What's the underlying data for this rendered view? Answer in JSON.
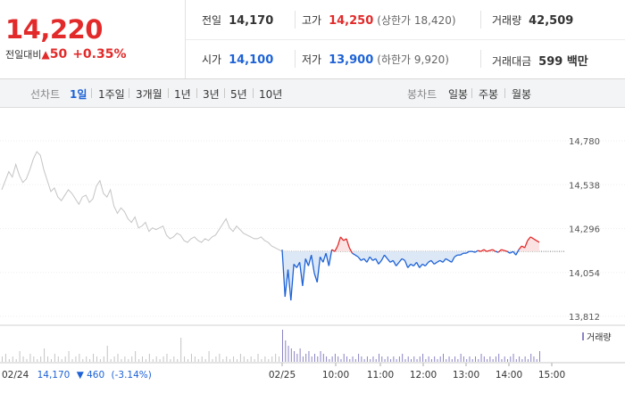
{
  "quote": {
    "price": "14,220",
    "change_label": "전일대비",
    "change_icon": "up-triangle-icon",
    "change_glyph": "▲",
    "change_value": "50",
    "change_pct": "+0.35%"
  },
  "stats": {
    "prev_close_label": "전일",
    "prev_close": "14,170",
    "high_label": "고가",
    "high": "14,250",
    "upper_limit": "(상한가 18,420)",
    "volume_label": "거래량",
    "volume": "42,509",
    "open_label": "시가",
    "open": "14,100",
    "low_label": "저가",
    "low": "13,900",
    "lower_limit": "(하한가 9,920)",
    "amount_label": "거래대금",
    "amount": "599 백만"
  },
  "tabs": {
    "line_label": "선차트",
    "line": [
      "1일",
      "1주일",
      "3개월",
      "1년",
      "3년",
      "5년",
      "10년"
    ],
    "active_line": "1일",
    "candle_label": "봉차트",
    "candle": [
      "일봉",
      "주봉",
      "월봉"
    ]
  },
  "colors": {
    "up": "#e22a2a",
    "down": "#1d62d6",
    "prev_day": "#c4c4c4",
    "volume": "#8a84c4"
  },
  "chart_data": {
    "type": "line",
    "title": "",
    "ylim": [
      13812,
      14780
    ],
    "yticks": [
      "14,780",
      "14,538",
      "14,296",
      "14,054",
      "13,812"
    ],
    "ytick_values": [
      14780,
      14538,
      14296,
      14054,
      13812
    ],
    "reference_price": 14170,
    "grid": true,
    "x_labels": [
      "02/24",
      "02/25",
      "10:00",
      "11:00",
      "12:00",
      "13:00",
      "14:00",
      "15:00"
    ],
    "volume_legend": "거래량",
    "prev_day_info": {
      "date": "02/24",
      "close": "14,170",
      "arrow": "▼",
      "change": "460",
      "pct": "(-3.14%)"
    },
    "prev_day_series": {
      "name": "02/24",
      "values": [
        14510,
        14560,
        14610,
        14580,
        14650,
        14590,
        14550,
        14570,
        14620,
        14680,
        14720,
        14700,
        14620,
        14560,
        14500,
        14520,
        14470,
        14450,
        14480,
        14510,
        14490,
        14460,
        14430,
        14470,
        14480,
        14440,
        14460,
        14530,
        14560,
        14490,
        14470,
        14510,
        14420,
        14380,
        14410,
        14390,
        14350,
        14330,
        14360,
        14300,
        14310,
        14330,
        14280,
        14300,
        14290,
        14300,
        14310,
        14260,
        14240,
        14250,
        14270,
        14260,
        14230,
        14220,
        14240,
        14250,
        14230,
        14220,
        14240,
        14230,
        14250,
        14260,
        14290,
        14320,
        14350,
        14300,
        14280,
        14310,
        14290,
        14270,
        14260,
        14250,
        14240,
        14240,
        14250,
        14230,
        14220,
        14200,
        14190,
        14180,
        14170
      ]
    },
    "today_series": {
      "name": "02/25",
      "values": [
        14180,
        13920,
        14070,
        13900,
        14100,
        14080,
        14110,
        13980,
        14130,
        14090,
        14150,
        14050,
        14000,
        14140,
        14110,
        14160,
        14090,
        14180,
        14170,
        14200,
        14250,
        14230,
        14240,
        14190,
        14160,
        14150,
        14140,
        14120,
        14130,
        14110,
        14140,
        14120,
        14130,
        14100,
        14120,
        14150,
        14130,
        14110,
        14120,
        14090,
        14110,
        14130,
        14120,
        14080,
        14100,
        14090,
        14110,
        14080,
        14100,
        14090,
        14110,
        14120,
        14100,
        14110,
        14120,
        14110,
        14130,
        14120,
        14110,
        14140,
        14150,
        14150,
        14160,
        14160,
        14170,
        14170,
        14165,
        14175,
        14170,
        14180,
        14170,
        14175,
        14180,
        14170,
        14165,
        14180,
        14175,
        14170,
        14160,
        14170,
        14150,
        14180,
        14200,
        14190,
        14230,
        14250,
        14240,
        14230,
        14220
      ]
    },
    "volume": {
      "prev_day": [
        2,
        3,
        1,
        2,
        1,
        4,
        2,
        1,
        3,
        2,
        1,
        2,
        5,
        2,
        1,
        3,
        2,
        1,
        2,
        4,
        1,
        2,
        3,
        1,
        2,
        1,
        3,
        2,
        1,
        2,
        6,
        1,
        2,
        3,
        1,
        2,
        1,
        2,
        4,
        1,
        2,
        1,
        3,
        1,
        2,
        1,
        2,
        3,
        1,
        2,
        1,
        9,
        2,
        1,
        3,
        2,
        1,
        2,
        1,
        4,
        1,
        2,
        3,
        1,
        2,
        1,
        2,
        1,
        3,
        2,
        1,
        2,
        1,
        3,
        1,
        2,
        1,
        2,
        3,
        2,
        1
      ],
      "today": [
        12,
        8,
        6,
        5,
        4,
        3,
        5,
        2,
        3,
        4,
        2,
        3,
        2,
        4,
        3,
        2,
        1,
        2,
        3,
        2,
        1,
        3,
        2,
        1,
        2,
        1,
        3,
        2,
        1,
        2,
        1,
        2,
        1,
        3,
        2,
        1,
        2,
        1,
        2,
        1,
        2,
        3,
        1,
        2,
        1,
        2,
        1,
        2,
        3,
        1,
        2,
        1,
        2,
        1,
        2,
        3,
        1,
        2,
        1,
        2,
        1,
        3,
        2,
        1,
        2,
        1,
        2,
        1,
        3,
        2,
        1,
        2,
        1,
        2,
        3,
        1,
        2,
        1,
        2,
        3,
        1,
        2,
        1,
        2,
        1,
        3,
        2,
        1,
        4
      ]
    }
  }
}
